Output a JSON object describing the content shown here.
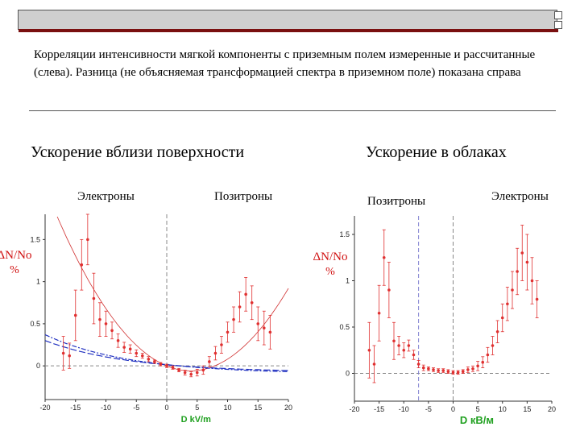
{
  "caption": "Корреляции интенсивности мягкой компоненты с приземным полем измеренные и рассчитанные (слева). Разница (не объясняемая трансформацией спектра в приземном поле) показана справа",
  "left_title": "Ускорение вблизи поверхности",
  "right_title": "Ускорение в облаках",
  "left_sub_1": "Электроны",
  "left_sub_2": "Позитроны",
  "right_sub_1": "Позитроны",
  "right_sub_2": "Электроны",
  "colors": {
    "accent": "#7a1010",
    "points": "#e03030",
    "fit_red": "#d03030",
    "fit_blue": "#2030c0",
    "axis_label": "#20a020"
  },
  "chart_data": [
    {
      "type": "scatter",
      "ylabel": "ΔN/No %",
      "xlabel": "D  kV/m",
      "xlim": [
        -20,
        20
      ],
      "ylim": [
        -0.4,
        1.8
      ],
      "x_ticks": [
        -20,
        -15,
        -10,
        -5,
        0,
        5,
        10,
        15,
        20
      ],
      "y_ticks": [
        0,
        0.5,
        1,
        1.5
      ],
      "markers_x": [
        0
      ],
      "series": [
        {
          "x": [
            -17,
            -16,
            -15,
            -14,
            -13,
            -12,
            -11,
            -10,
            -9,
            -8,
            -7,
            -6,
            -5,
            -4,
            -3,
            -2,
            -1,
            0,
            1,
            2,
            3,
            4,
            5,
            6,
            7,
            8,
            9,
            10,
            11,
            12,
            13,
            14,
            15,
            16,
            17
          ],
          "y": [
            0.15,
            0.12,
            0.6,
            1.2,
            1.5,
            0.8,
            0.55,
            0.5,
            0.42,
            0.3,
            0.22,
            0.2,
            0.15,
            0.12,
            0.08,
            0.05,
            0.02,
            0,
            -0.02,
            -0.05,
            -0.08,
            -0.1,
            -0.08,
            -0.05,
            0.05,
            0.15,
            0.25,
            0.4,
            0.55,
            0.7,
            0.85,
            0.75,
            0.5,
            0.45,
            0.4
          ],
          "err": [
            0.2,
            0.15,
            0.3,
            0.3,
            0.3,
            0.3,
            0.2,
            0.15,
            0.1,
            0.08,
            0.06,
            0.05,
            0.04,
            0.03,
            0.03,
            0.02,
            0.02,
            0.02,
            0.02,
            0.02,
            0.03,
            0.03,
            0.04,
            0.05,
            0.06,
            0.08,
            0.1,
            0.12,
            0.15,
            0.18,
            0.2,
            0.2,
            0.2,
            0.2,
            0.2
          ]
        }
      ]
    },
    {
      "type": "scatter",
      "ylabel": "ΔN/No %",
      "xlabel": "D кВ/м",
      "xlim": [
        -20,
        20
      ],
      "ylim": [
        -0.3,
        1.7
      ],
      "x_ticks": [
        -20,
        -15,
        -10,
        -5,
        0,
        5,
        10,
        15,
        20
      ],
      "y_ticks": [
        0,
        0.5,
        1,
        1.5
      ],
      "markers_x": [
        -7,
        0
      ],
      "series": [
        {
          "x": [
            -17,
            -16,
            -15,
            -14,
            -13,
            -12,
            -11,
            -10,
            -9,
            -8,
            -7,
            -6,
            -5,
            -4,
            -3,
            -2,
            -1,
            0,
            1,
            2,
            3,
            4,
            5,
            6,
            7,
            8,
            9,
            10,
            11,
            12,
            13,
            14,
            15,
            16,
            17
          ],
          "y": [
            0.25,
            0.1,
            0.65,
            1.25,
            0.9,
            0.35,
            0.3,
            0.25,
            0.3,
            0.2,
            0.1,
            0.06,
            0.05,
            0.04,
            0.03,
            0.03,
            0.02,
            0.01,
            0.01,
            0.02,
            0.04,
            0.05,
            0.08,
            0.12,
            0.2,
            0.3,
            0.45,
            0.6,
            0.75,
            0.9,
            1.1,
            1.3,
            1.2,
            1.0,
            0.8
          ],
          "err": [
            0.3,
            0.2,
            0.3,
            0.3,
            0.3,
            0.2,
            0.1,
            0.08,
            0.06,
            0.05,
            0.04,
            0.03,
            0.02,
            0.02,
            0.02,
            0.02,
            0.02,
            0.02,
            0.02,
            0.02,
            0.03,
            0.03,
            0.05,
            0.06,
            0.08,
            0.1,
            0.12,
            0.15,
            0.18,
            0.2,
            0.25,
            0.3,
            0.3,
            0.25,
            0.2
          ]
        }
      ]
    }
  ]
}
